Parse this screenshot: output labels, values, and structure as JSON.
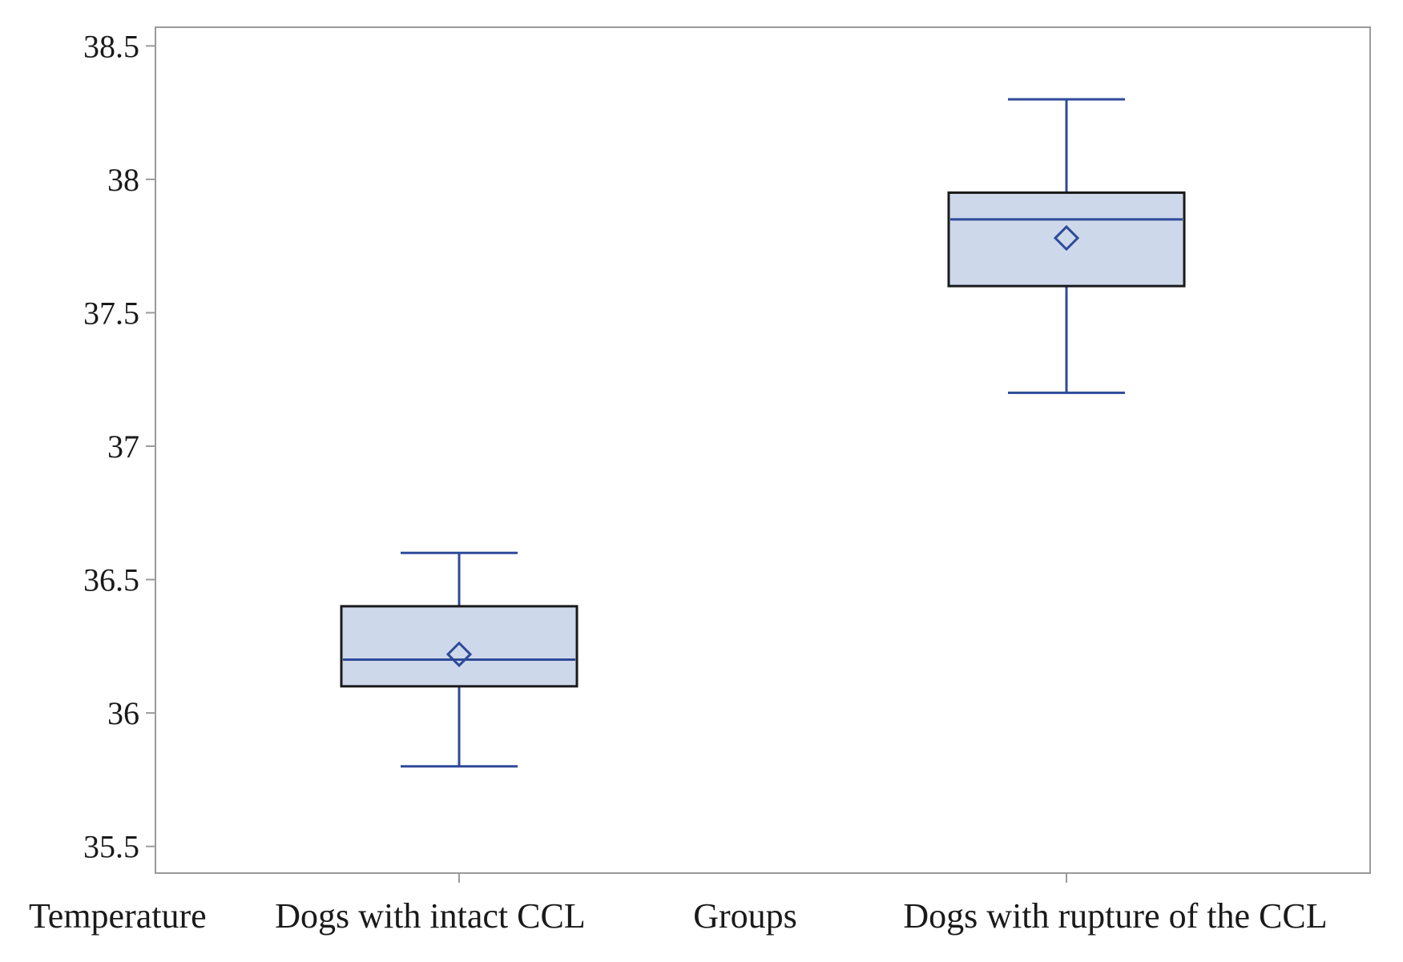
{
  "chart_data": {
    "type": "box",
    "categories": [
      "Dogs with intact CCL",
      "Dogs with rupture of the CCL"
    ],
    "boxes": [
      {
        "category": "Dogs with intact CCL",
        "min": 35.8,
        "q1": 36.1,
        "median": 36.2,
        "mean": 36.22,
        "q3": 36.4,
        "max": 36.6
      },
      {
        "category": "Dogs with rupture of the CCL",
        "min": 37.2,
        "q1": 37.6,
        "median": 37.85,
        "mean": 37.78,
        "q3": 37.95,
        "max": 38.3
      }
    ],
    "ylabel": "Temperature",
    "xlabel": "Groups",
    "ylim": [
      35.4,
      38.57
    ],
    "yticks": [
      35.5,
      36,
      36.5,
      37,
      37.5,
      38,
      38.5
    ],
    "ytick_labels": [
      "35.5",
      "36",
      "36.5",
      "37",
      "37.5",
      "38",
      "38.5"
    ],
    "grid": false,
    "colors": {
      "box_fill": "#cdd8ea",
      "line": "#2e4a9a",
      "box_border": "#1a1a1a",
      "frame": "#9a9a9a"
    }
  }
}
